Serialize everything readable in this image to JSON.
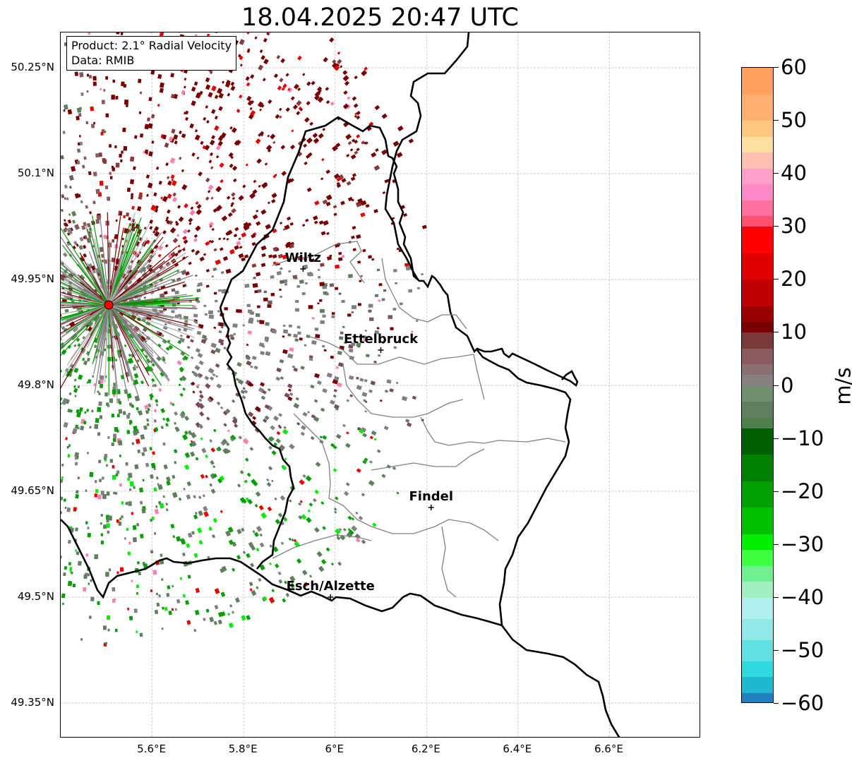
{
  "title": "18.04.2025 20:47 UTC",
  "info_box": {
    "product": "Product: 2.1° Radial Velocity",
    "data": "Data: RMIB"
  },
  "map": {
    "lon_range": [
      5.4,
      6.8
    ],
    "lat_range": [
      49.3,
      50.3
    ],
    "lat_ticks": [
      "50.25°N",
      "50.1°N",
      "49.95°N",
      "49.8°N",
      "49.65°N",
      "49.5°N",
      "49.35°N"
    ],
    "lon_ticks": [
      "5.6°E",
      "5.8°E",
      "6°E",
      "6.2°E",
      "6.4°E",
      "6.6°E"
    ],
    "radar_site": {
      "lon": 5.505,
      "lat": 49.914,
      "color": "#ff0000"
    },
    "cities": [
      {
        "name": "Wiltz",
        "lon": 5.93,
        "lat": 49.965
      },
      {
        "name": "Ettelbruck",
        "lon": 6.1,
        "lat": 49.85
      },
      {
        "name": "Findel",
        "lon": 6.21,
        "lat": 49.627
      },
      {
        "name": "Esch/Alzette",
        "lon": 5.99,
        "lat": 49.5
      }
    ]
  },
  "colorbar": {
    "unit": "m/s",
    "min": -60,
    "max": 60,
    "tick_labels": [
      "60",
      "50",
      "40",
      "30",
      "20",
      "10",
      "0",
      "−10",
      "−20",
      "−30",
      "−40",
      "−50",
      "−60"
    ],
    "colors": {
      "dark_red": "#7a0000",
      "red": "#ee0000",
      "pink": "#ff7fb0",
      "gray": "#808080",
      "gray_green": "#5f7f5f",
      "green": "#00a000",
      "bright_green": "#00ee00",
      "cyan": "#30d8e0",
      "blue": "#2080c0"
    }
  }
}
